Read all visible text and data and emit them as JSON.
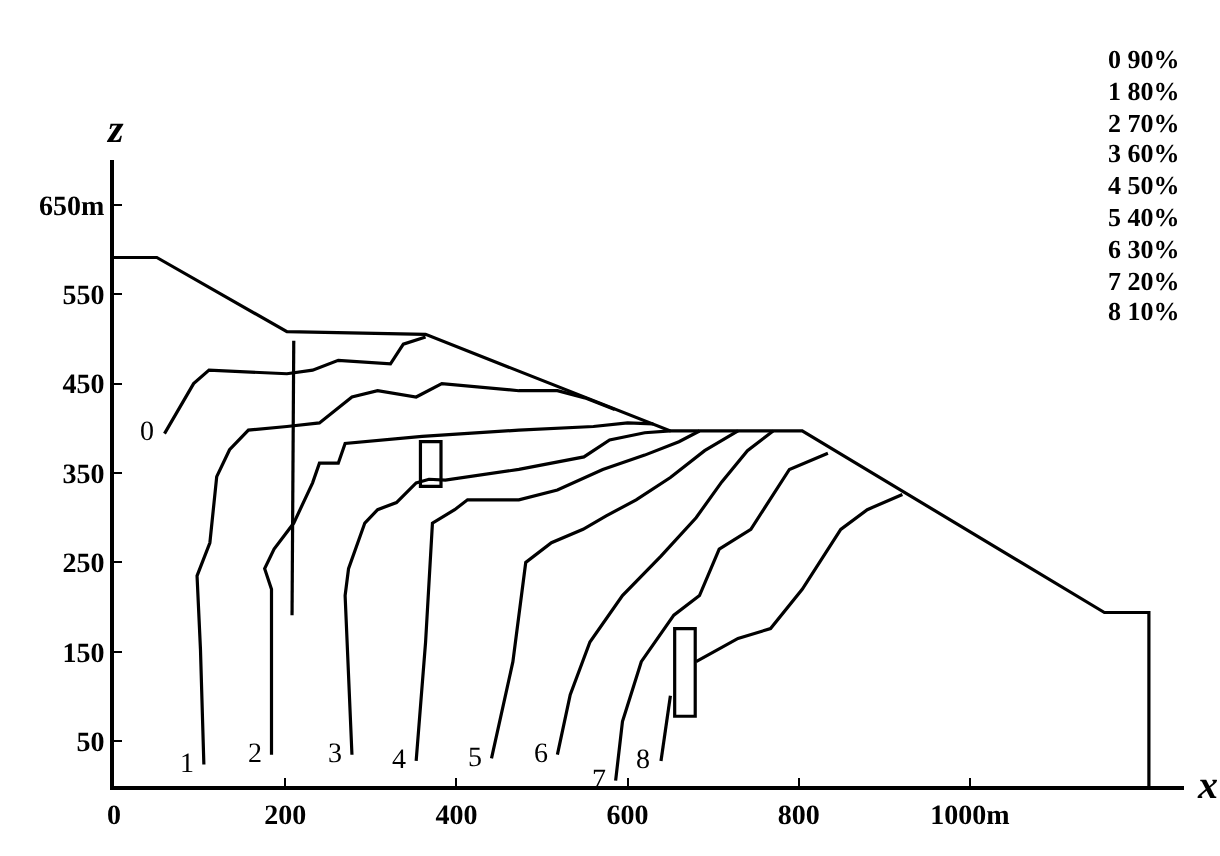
{
  "chart_data": {
    "type": "line",
    "xlabel": "x",
    "ylabel": "z",
    "xlim": [
      0,
      1250
    ],
    "ylim": [
      0,
      700
    ],
    "xticks": [
      0,
      200,
      400,
      600,
      800,
      {
        "value": 1000,
        "label": "1000m"
      }
    ],
    "yticks": [
      50,
      150,
      250,
      350,
      450,
      550,
      {
        "value": 650,
        "label": "650m"
      }
    ],
    "legend": false,
    "marker": "none",
    "line_style": "solid",
    "series": [
      {
        "color": "#000000",
        "x": [
          0,
          50,
          202,
          364,
          650,
          804,
          1157,
          1209,
          1209
        ],
        "values": [
          591,
          591,
          508,
          505,
          397,
          397,
          194,
          194,
          0
        ]
      },
      {
        "color": "#000000",
        "x": [
          210,
          208
        ],
        "values": [
          498,
          191
        ]
      },
      {
        "type": "bar",
        "color": "#000000",
        "x": [
          370,
          667
        ],
        "base": [
          335,
          78
        ],
        "values": [
          50,
          98
        ]
      },
      {
        "name": "0",
        "color": "#000000",
        "x": [
          59,
          93,
          111,
          202,
          232,
          262,
          323,
          338,
          364
        ],
        "values": [
          394,
          450,
          465,
          461,
          465,
          476,
          472,
          494,
          502
        ]
      },
      {
        "name": "1",
        "color": "#000000",
        "x": [
          105,
          101,
          97,
          112,
          120,
          135,
          157,
          202,
          240,
          278,
          308,
          353,
          383,
          473,
          518,
          550,
          585
        ],
        "values": [
          24,
          153,
          235,
          272,
          346,
          376,
          398,
          402,
          406,
          435,
          442,
          435,
          450,
          442,
          442,
          434,
          421
        ]
      },
      {
        "name": "2",
        "color": "#000000",
        "x": [
          184,
          184,
          176,
          187,
          210,
          232,
          240,
          262,
          270,
          360,
          473,
          560,
          600,
          630
        ],
        "values": [
          35,
          220,
          243,
          265,
          294,
          339,
          361,
          361,
          383,
          391,
          398,
          402,
          406,
          405
        ]
      },
      {
        "name": "3",
        "color": "#000000",
        "x": [
          278,
          270,
          274,
          293,
          308,
          330,
          353,
          368,
          387,
          473,
          549,
          579,
          620,
          650
        ],
        "values": [
          35,
          213,
          243,
          294,
          309,
          317,
          339,
          343,
          342,
          354,
          368,
          387,
          395,
          397
        ]
      },
      {
        "name": "4",
        "color": "#000000",
        "x": [
          353,
          364,
          372,
          398,
          413,
          473,
          518,
          571,
          620,
          660,
          684
        ],
        "values": [
          28,
          161,
          294,
          309,
          320,
          320,
          331,
          354,
          370,
          385,
          397
        ]
      },
      {
        "name": "5",
        "color": "#000000",
        "x": [
          441,
          466,
          481,
          511,
          548,
          575,
          610,
          650,
          690,
          729
        ],
        "values": [
          31,
          139,
          250,
          272,
          287,
          302,
          320,
          345,
          375,
          397
        ]
      },
      {
        "name": "6",
        "color": "#000000",
        "x": [
          518,
          533,
          556,
          594,
          639,
          680,
          710,
          740,
          770
        ],
        "values": [
          35,
          102,
          161,
          213,
          257,
          300,
          340,
          375,
          397
        ]
      },
      {
        "name": "7",
        "color": "#000000",
        "x": [
          586,
          594,
          616,
          654,
          684,
          707,
          744,
          789,
          834
        ],
        "values": [
          6,
          72,
          139,
          191,
          213,
          265,
          287,
          354,
          372
        ]
      },
      {
        "name": "8",
        "color": "#000000",
        "x": [
          639,
          650
        ],
        "values": [
          28,
          101
        ]
      },
      {
        "color": "#000000",
        "x": [
          680,
          729,
          767,
          804,
          849,
          880,
          921
        ],
        "values": [
          139,
          165,
          176,
          220,
          287,
          309,
          326
        ]
      }
    ],
    "annotations": [
      "0 90%",
      "1 80%",
      "2 70%",
      "3 60%",
      "4 50%",
      "5 40%",
      "6 30%",
      "7 20%",
      "8 10%"
    ]
  }
}
